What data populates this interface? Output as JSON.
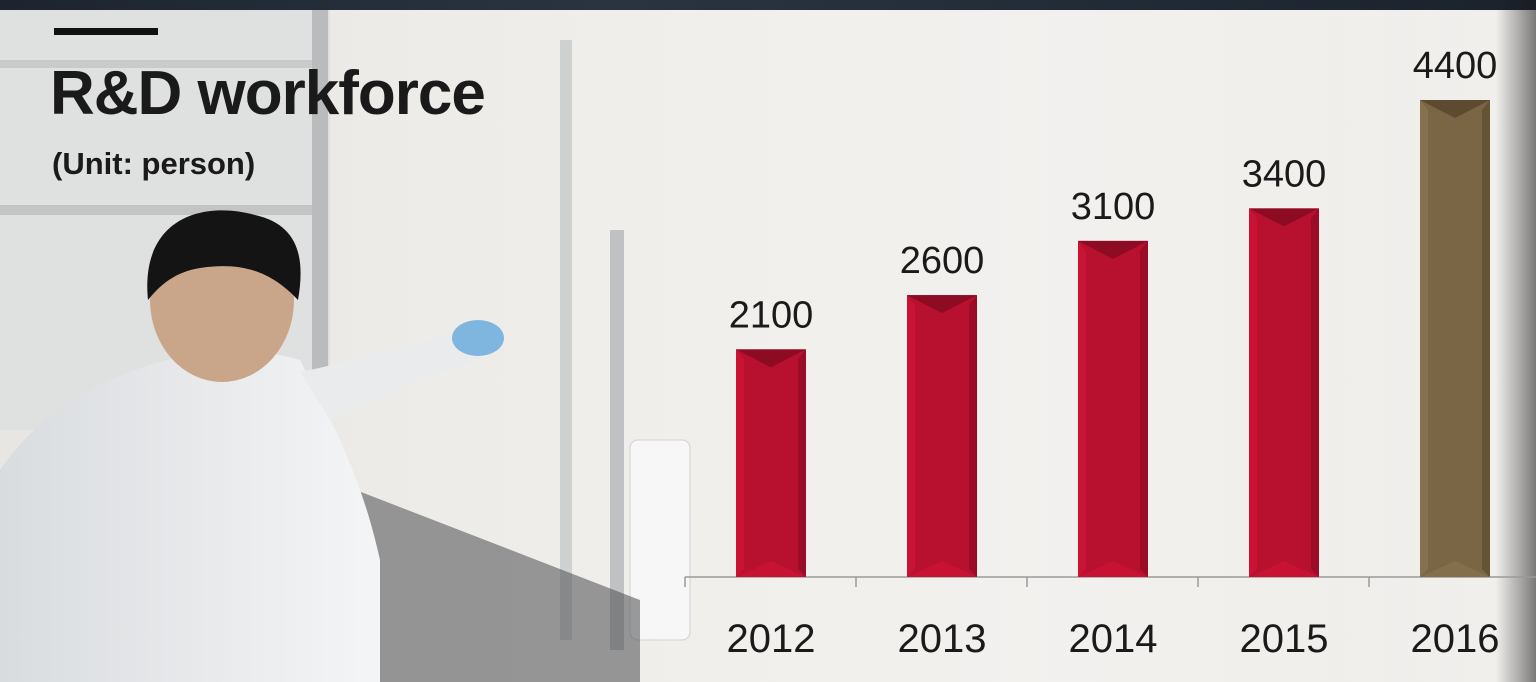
{
  "header": {
    "title": "R&D workforce",
    "subtitle": "(Unit: person)"
  },
  "colors": {
    "bar_default": "#b8102f",
    "bar_highlight": "#7a6545",
    "text": "#1a1a1a"
  },
  "chart_data": {
    "type": "bar",
    "title": "R&D workforce",
    "subtitle": "(Unit: person)",
    "categories": [
      "2012",
      "2013",
      "2014",
      "2015",
      "2016"
    ],
    "values": [
      2100,
      2600,
      3100,
      3400,
      4400
    ],
    "highlight_index": 4,
    "xlabel": "",
    "ylabel": "",
    "ylim": [
      0,
      4400
    ],
    "grid": false,
    "legend": "none"
  }
}
